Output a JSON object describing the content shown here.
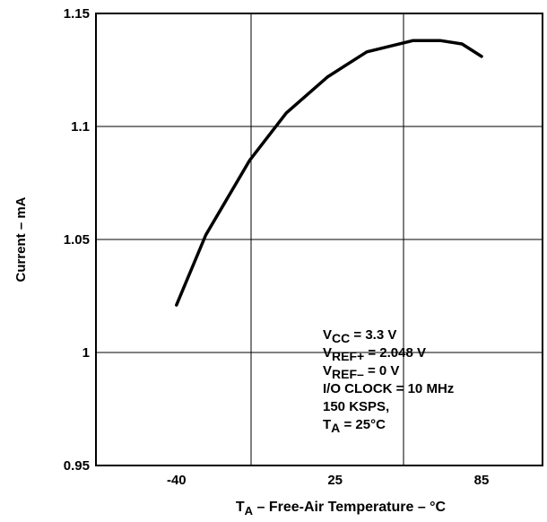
{
  "chart_data": {
    "type": "line",
    "x": [
      -40,
      -28,
      -10,
      5,
      22,
      38,
      57,
      68,
      77,
      85
    ],
    "series": [
      {
        "name": "Current",
        "color": "#000000",
        "values": [
          1.021,
          1.052,
          1.085,
          1.106,
          1.122,
          1.133,
          1.138,
          1.138,
          1.1365,
          1.131
        ]
      }
    ],
    "xlim": [
      -73,
      110
    ],
    "xticks": [
      -40,
      25,
      85
    ],
    "ylim": [
      0.95,
      1.15
    ],
    "yticks": [
      {
        "value": 0.95,
        "label": "0.95"
      },
      {
        "value": 1,
        "label": "1"
      },
      {
        "value": 1.05,
        "label": "1.05"
      },
      {
        "value": 1.1,
        "label": "1.1"
      },
      {
        "value": 1.15,
        "label": "1.15"
      }
    ],
    "grid": true,
    "y_label": "Current – mA",
    "x_label": {
      "main": "T",
      "sub": "A",
      "rest": " – Free-Air Temperature – °C"
    },
    "annotations": [
      {
        "main": "V",
        "sub": "CC",
        "rest": " = 3.3 V"
      },
      {
        "main": "V",
        "sub": "REF+",
        "rest": " = 2.048 V"
      },
      {
        "main": "V",
        "sub": "REF–",
        "rest": " = 0 V"
      },
      {
        "main": "I/O CLOCK = 10 MHz"
      },
      {
        "main": "150 KSPS,"
      },
      {
        "main": "T",
        "sub": "A",
        "rest": " = 25°C"
      }
    ]
  }
}
